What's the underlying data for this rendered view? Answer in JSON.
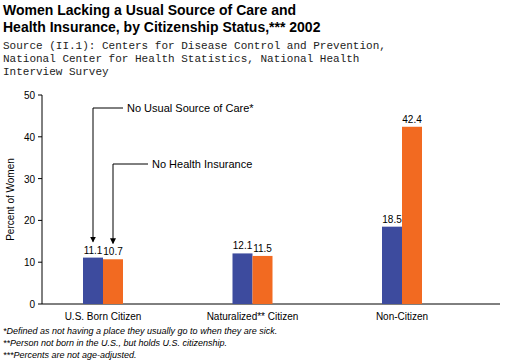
{
  "chart_data": {
    "type": "bar",
    "title": "Women Lacking a Usual Source of Care and Health Insurance, by Citizenship Status,*** 2002",
    "subtitle": "Source (II.1): Centers for Disease Control and Prevention, National Center for Health Statistics, National Health Interview Survey",
    "ylabel": "Percent of Women",
    "categories": [
      "U.S. Born Citizen",
      "Naturalized** Citizen",
      "Non-Citizen"
    ],
    "series": [
      {
        "name": "No Usual Source of Care*",
        "color": "#3d4b9e",
        "values": [
          11.1,
          12.1,
          18.5
        ]
      },
      {
        "name": "No Health Insurance",
        "color": "#f26a21",
        "values": [
          10.7,
          11.5,
          42.4
        ]
      }
    ],
    "ylim": [
      0,
      50
    ],
    "yticks": [
      0,
      10,
      20,
      30,
      40,
      50
    ],
    "grid": false,
    "data_labels": true,
    "notes": [
      "*Defined as not having a place they usually go to when they are sick.",
      "**Person not born in the U.S., but holds U.S. citizenship.",
      "***Percents are not age-adjusted."
    ]
  }
}
